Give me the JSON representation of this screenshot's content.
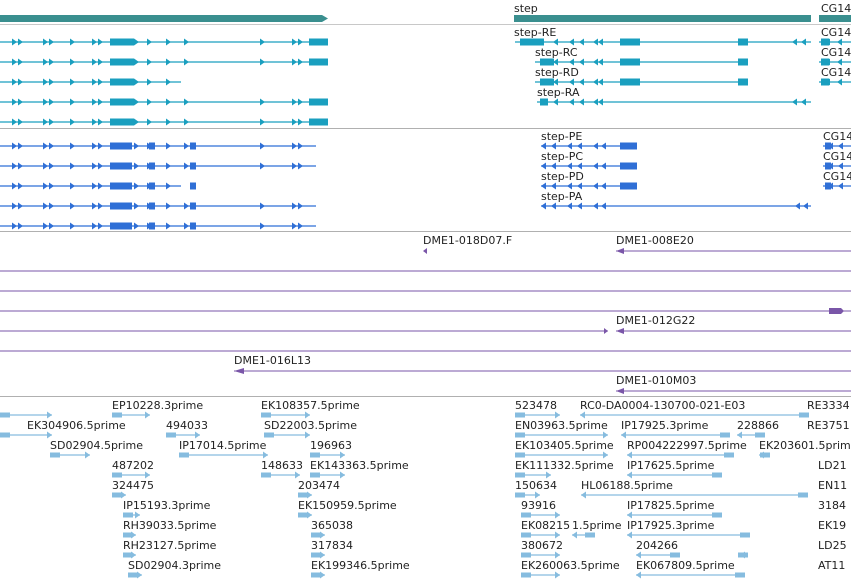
{
  "colors": {
    "gene_bar": "#3a8f8f",
    "transcript": "#1a9fbf",
    "protein": "#2f6fd6",
    "clone": "#7a56a8",
    "est": "#86bcdf",
    "divider": "#b8b8b8",
    "label": "#222222"
  },
  "tracks": {
    "genes": {
      "step": "step",
      "cg": "CG14"
    },
    "transcripts": {
      "step": [
        "step-RE",
        "step-RC",
        "step-RD",
        "step-RA"
      ],
      "cg": [
        "CG14",
        "CG14",
        "CG14"
      ]
    },
    "proteins": {
      "step": [
        "step-PE",
        "step-PC",
        "step-PD",
        "step-PA"
      ],
      "cg": [
        "CG14",
        "CG14",
        "CG14"
      ]
    },
    "clones": [
      "DME1-018D07.F",
      "DME1-008E20",
      "DME1-012G22",
      "DME1-016L13",
      "DME1-010M03"
    ],
    "ests": [
      "EP10228.3prime",
      "EK108357.5prime",
      "523478",
      "RC0-DA0004-130700-021-E03",
      "RE3334",
      "EK304906.5prime",
      "494033",
      "SD22003.5prime",
      "EN03963.5prime",
      "IP17925.3prime",
      "228866",
      "RE3751",
      "SD02904.5prime",
      "IP17014.5prime",
      "196963",
      "EK103405.5prime",
      "RP004222997.5prime",
      "EK20360",
      "1.5prime",
      "487202",
      "148633",
      "EK143363.5prime",
      "EK111332.5prime",
      "IP17625.5prime",
      "LD21",
      "324475",
      "203474",
      "150634",
      "HL06188.5prime",
      "EN11",
      "IP15193.3prime",
      "EK150959.5prime",
      "93916",
      "IP17825.5prime",
      "3184",
      "RH39033.5prime",
      "365038",
      "EK08215",
      "1.5prime",
      "IP17925.3prime",
      "EK19",
      "RH23127.5prime",
      "317834",
      "380672",
      "204266",
      "LD25",
      "SD02904.3prime",
      "EK199346.5prime",
      "EK260063.5prime",
      "EK067809.5prime",
      "AT11"
    ]
  }
}
